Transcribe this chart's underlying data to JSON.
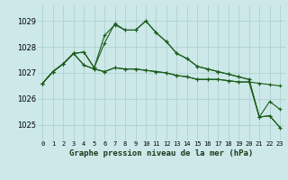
{
  "title": "Graphe pression niveau de la mer (hPa)",
  "bg_color": "#cce8e8",
  "grid_color": "#aacccc",
  "line_color": "#1a5c1a",
  "x_labels": [
    "0",
    "1",
    "2",
    "3",
    "4",
    "5",
    "6",
    "7",
    "8",
    "9",
    "10",
    "11",
    "12",
    "13",
    "14",
    "15",
    "16",
    "17",
    "18",
    "19",
    "20",
    "21",
    "22",
    "23"
  ],
  "ylim": [
    1024.4,
    1029.6
  ],
  "yticks": [
    1025,
    1026,
    1027,
    1028,
    1029
  ],
  "series": [
    [
      1026.6,
      1027.05,
      1027.35,
      1027.75,
      1027.3,
      1027.15,
      1027.05,
      1027.2,
      1027.15,
      1027.15,
      1027.1,
      1027.05,
      1027.0,
      1026.9,
      1026.85,
      1026.75,
      1026.75,
      1026.75,
      1026.7,
      1026.65,
      1026.65,
      1026.6,
      1026.55,
      1026.5
    ],
    [
      1026.6,
      1027.05,
      1027.35,
      1027.75,
      1027.3,
      1027.15,
      1027.05,
      1027.2,
      1027.15,
      1027.15,
      1027.1,
      1027.05,
      1027.0,
      1026.9,
      1026.85,
      1026.75,
      1026.75,
      1026.75,
      1026.7,
      1026.65,
      1026.65,
      1025.3,
      1025.9,
      1025.6
    ],
    [
      1026.6,
      1027.05,
      1027.35,
      1027.75,
      1027.8,
      1027.2,
      1028.15,
      1028.9,
      1028.65,
      1028.65,
      1029.0,
      1028.55,
      1028.2,
      1027.75,
      1027.55,
      1027.25,
      1027.15,
      1027.05,
      1026.95,
      1026.85,
      1026.75,
      1025.3,
      1025.35,
      1024.9
    ],
    [
      1026.6,
      1027.05,
      1027.35,
      1027.75,
      1027.8,
      1027.2,
      1028.45,
      1028.85,
      1028.65,
      1028.65,
      1029.0,
      1028.55,
      1028.2,
      1027.75,
      1027.55,
      1027.25,
      1027.15,
      1027.05,
      1026.95,
      1026.85,
      1026.75,
      1025.3,
      1025.35,
      1024.9
    ]
  ]
}
